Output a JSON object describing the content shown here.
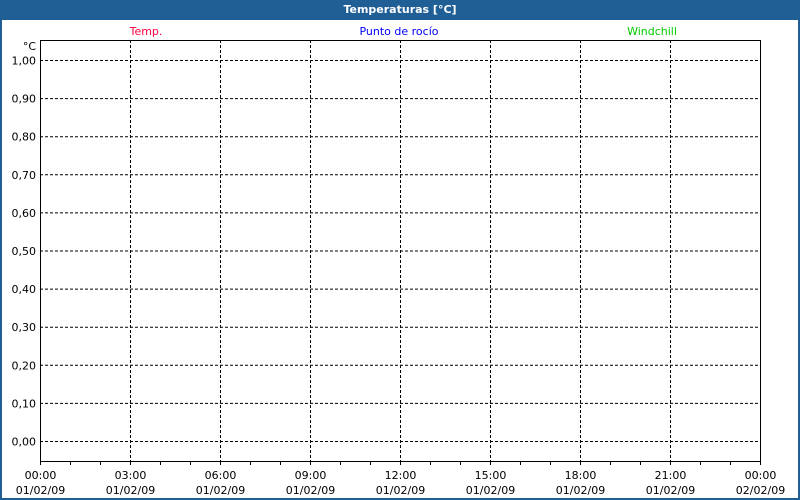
{
  "window": {
    "title": "Temperaturas [°C]"
  },
  "chart_data": {
    "type": "line",
    "title": "Temperaturas [°C]",
    "ylabel": "°C",
    "ylim": [
      0.0,
      1.0
    ],
    "yticks": [
      "0,00",
      "0,10",
      "0,20",
      "0,30",
      "0,40",
      "0,50",
      "0,60",
      "0,70",
      "0,80",
      "0,90",
      "1,00"
    ],
    "xticks": [
      {
        "time": "00:00",
        "date": "01/02/09"
      },
      {
        "time": "03:00",
        "date": "01/02/09"
      },
      {
        "time": "06:00",
        "date": "01/02/09"
      },
      {
        "time": "09:00",
        "date": "01/02/09"
      },
      {
        "time": "12:00",
        "date": "01/02/09"
      },
      {
        "time": "15:00",
        "date": "01/02/09"
      },
      {
        "time": "18:00",
        "date": "01/02/09"
      },
      {
        "time": "21:00",
        "date": "01/02/09"
      },
      {
        "time": "00:00",
        "date": "02/02/09"
      }
    ],
    "grid": true,
    "legend_placement": "top",
    "series": [
      {
        "name": "Temp.",
        "color": "#ff0040",
        "values": []
      },
      {
        "name": "Punto de rocío",
        "color": "#0000ff",
        "values": []
      },
      {
        "name": "Windchill",
        "color": "#00cc00",
        "values": []
      }
    ]
  }
}
